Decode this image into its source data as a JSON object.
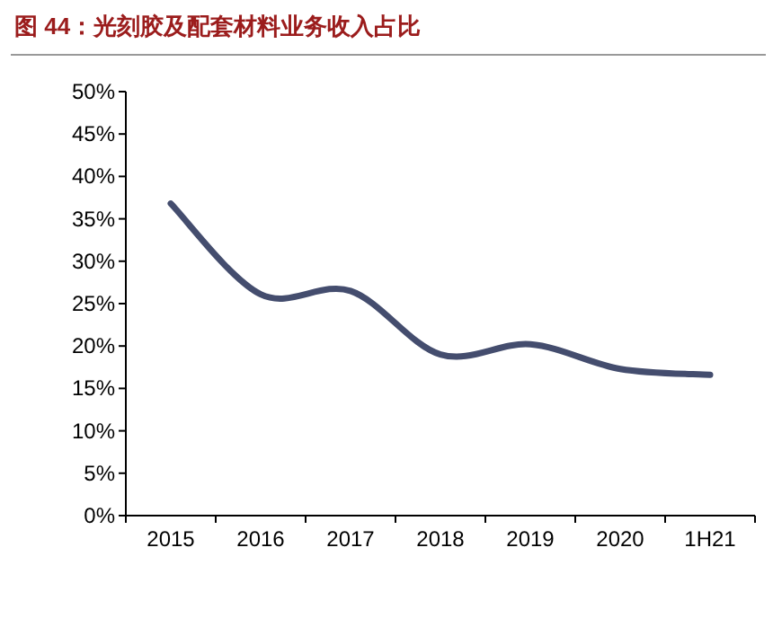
{
  "chart_data": {
    "type": "line",
    "title": "图 44：光刻胶及配套材料业务收入占比",
    "categories": [
      "2015",
      "2016",
      "2017",
      "2018",
      "2019",
      "2020",
      "1H21"
    ],
    "series": [
      {
        "color": "#444d6e",
        "values": [
          36.8,
          26.1,
          26.5,
          19.0,
          20.2,
          17.3,
          16.6
        ]
      }
    ],
    "ylim": [
      0,
      50
    ],
    "yticks": [
      {
        "value": 0,
        "label": "0%"
      },
      {
        "value": 5,
        "label": "5%"
      },
      {
        "value": 10,
        "label": "10%"
      },
      {
        "value": 15,
        "label": "15%"
      },
      {
        "value": 20,
        "label": "20%"
      },
      {
        "value": 25,
        "label": "25%"
      },
      {
        "value": 30,
        "label": "30%"
      },
      {
        "value": 35,
        "label": "35%"
      },
      {
        "value": 40,
        "label": "40%"
      },
      {
        "value": 45,
        "label": "45%"
      },
      {
        "value": 50,
        "label": "50%"
      }
    ],
    "grid": false,
    "marker": "none",
    "line_style": "solid"
  }
}
